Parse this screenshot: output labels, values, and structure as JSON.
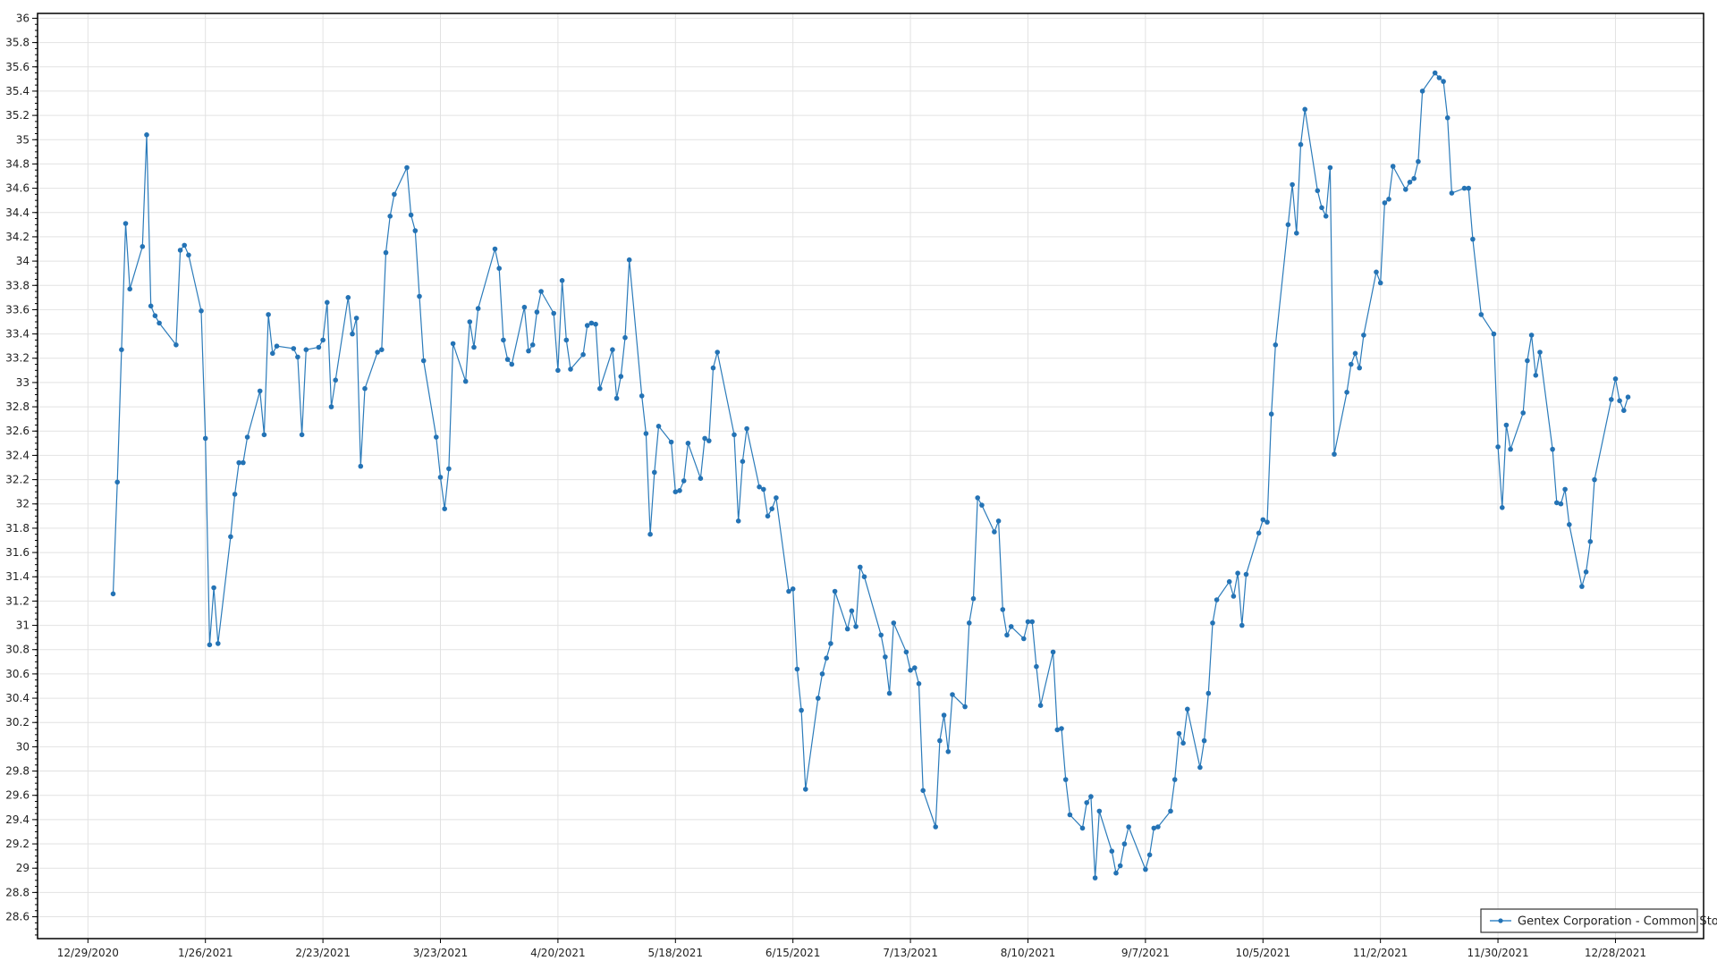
{
  "chart_data": {
    "type": "line",
    "title": "",
    "xlabel": "",
    "ylabel": "",
    "ylim": [
      28.42,
      36.04
    ],
    "xlim": [
      "12/17/2020",
      "1/18/2022"
    ],
    "y_ticks": [
      "28.6",
      "28.8",
      "29",
      "29.2",
      "29.4",
      "29.6",
      "29.8",
      "30",
      "30.2",
      "30.4",
      "30.6",
      "30.8",
      "31",
      "31.2",
      "31.4",
      "31.6",
      "31.8",
      "32",
      "32.2",
      "32.4",
      "32.6",
      "32.8",
      "33",
      "33.2",
      "33.4",
      "33.6",
      "33.8",
      "34",
      "34.2",
      "34.4",
      "34.6",
      "34.8",
      "35",
      "35.2",
      "35.4",
      "35.6",
      "35.8",
      "36"
    ],
    "x_ticks": [
      "12/29/2020",
      "1/26/2021",
      "2/23/2021",
      "3/23/2021",
      "4/20/2021",
      "5/18/2021",
      "6/15/2021",
      "7/13/2021",
      "8/10/2021",
      "9/7/2021",
      "10/5/2021",
      "11/2/2021",
      "11/30/2021",
      "12/28/2021"
    ],
    "grid": true,
    "legend_position": "bottom-right",
    "colors": {
      "series": "#2473b5",
      "grid": "#e2e2e2"
    },
    "series": [
      {
        "name": "Gentex Corporation - Common Stock",
        "marker": "circle",
        "x": [
          "1/4/2021",
          "1/5/2021",
          "1/6/2021",
          "1/7/2021",
          "1/8/2021",
          "1/11/2021",
          "1/12/2021",
          "1/13/2021",
          "1/14/2021",
          "1/15/2021",
          "1/19/2021",
          "1/20/2021",
          "1/21/2021",
          "1/22/2021",
          "1/25/2021",
          "1/26/2021",
          "1/27/2021",
          "1/28/2021",
          "1/29/2021",
          "2/1/2021",
          "2/2/2021",
          "2/3/2021",
          "2/4/2021",
          "2/5/2021",
          "2/8/2021",
          "2/9/2021",
          "2/10/2021",
          "2/11/2021",
          "2/12/2021",
          "2/16/2021",
          "2/17/2021",
          "2/18/2021",
          "2/19/2021",
          "2/22/2021",
          "2/23/2021",
          "2/24/2021",
          "2/25/2021",
          "2/26/2021",
          "3/1/2021",
          "3/2/2021",
          "3/3/2021",
          "3/4/2021",
          "3/5/2021",
          "3/8/2021",
          "3/9/2021",
          "3/10/2021",
          "3/11/2021",
          "3/12/2021",
          "3/15/2021",
          "3/16/2021",
          "3/17/2021",
          "3/18/2021",
          "3/19/2021",
          "3/22/2021",
          "3/23/2021",
          "3/24/2021",
          "3/25/2021",
          "3/26/2021",
          "3/29/2021",
          "3/30/2021",
          "3/31/2021",
          "4/1/2021",
          "4/5/2021",
          "4/6/2021",
          "4/7/2021",
          "4/8/2021",
          "4/9/2021",
          "4/12/2021",
          "4/13/2021",
          "4/14/2021",
          "4/15/2021",
          "4/16/2021",
          "4/19/2021",
          "4/20/2021",
          "4/21/2021",
          "4/22/2021",
          "4/23/2021",
          "4/26/2021",
          "4/27/2021",
          "4/28/2021",
          "4/29/2021",
          "4/30/2021",
          "5/3/2021",
          "5/4/2021",
          "5/5/2021",
          "5/6/2021",
          "5/7/2021",
          "5/10/2021",
          "5/11/2021",
          "5/12/2021",
          "5/13/2021",
          "5/14/2021",
          "5/17/2021",
          "5/18/2021",
          "5/19/2021",
          "5/20/2021",
          "5/21/2021",
          "5/24/2021",
          "5/25/2021",
          "5/26/2021",
          "5/27/2021",
          "5/28/2021",
          "6/1/2021",
          "6/2/2021",
          "6/3/2021",
          "6/4/2021",
          "6/7/2021",
          "6/8/2021",
          "6/9/2021",
          "6/10/2021",
          "6/11/2021",
          "6/14/2021",
          "6/15/2021",
          "6/16/2021",
          "6/17/2021",
          "6/18/2021",
          "6/21/2021",
          "6/22/2021",
          "6/23/2021",
          "6/24/2021",
          "6/25/2021",
          "6/28/2021",
          "6/29/2021",
          "6/30/2021",
          "7/1/2021",
          "7/2/2021",
          "7/6/2021",
          "7/7/2021",
          "7/8/2021",
          "7/9/2021",
          "7/12/2021",
          "7/13/2021",
          "7/14/2021",
          "7/15/2021",
          "7/16/2021",
          "7/19/2021",
          "7/20/2021",
          "7/21/2021",
          "7/22/2021",
          "7/23/2021",
          "7/26/2021",
          "7/27/2021",
          "7/28/2021",
          "7/29/2021",
          "7/30/2021",
          "8/2/2021",
          "8/3/2021",
          "8/4/2021",
          "8/5/2021",
          "8/6/2021",
          "8/9/2021",
          "8/10/2021",
          "8/11/2021",
          "8/12/2021",
          "8/13/2021",
          "8/16/2021",
          "8/17/2021",
          "8/18/2021",
          "8/19/2021",
          "8/20/2021",
          "8/23/2021",
          "8/24/2021",
          "8/25/2021",
          "8/26/2021",
          "8/27/2021",
          "8/30/2021",
          "8/31/2021",
          "9/1/2021",
          "9/2/2021",
          "9/3/2021",
          "9/7/2021",
          "9/8/2021",
          "9/9/2021",
          "9/10/2021",
          "9/13/2021",
          "9/14/2021",
          "9/15/2021",
          "9/16/2021",
          "9/17/2021",
          "9/20/2021",
          "9/21/2021",
          "9/22/2021",
          "9/23/2021",
          "9/24/2021",
          "9/27/2021",
          "9/28/2021",
          "9/29/2021",
          "9/30/2021",
          "10/1/2021",
          "10/4/2021",
          "10/5/2021",
          "10/6/2021",
          "10/7/2021",
          "10/8/2021",
          "10/11/2021",
          "10/12/2021",
          "10/13/2021",
          "10/14/2021",
          "10/15/2021",
          "10/18/2021",
          "10/19/2021",
          "10/20/2021",
          "10/21/2021",
          "10/22/2021",
          "10/25/2021",
          "10/26/2021",
          "10/27/2021",
          "10/28/2021",
          "10/29/2021",
          "11/1/2021",
          "11/2/2021",
          "11/3/2021",
          "11/4/2021",
          "11/5/2021",
          "11/8/2021",
          "11/9/2021",
          "11/10/2021",
          "11/11/2021",
          "11/12/2021",
          "11/15/2021",
          "11/16/2021",
          "11/17/2021",
          "11/18/2021",
          "11/19/2021",
          "11/22/2021",
          "11/23/2021",
          "11/24/2021",
          "11/26/2021",
          "11/29/2021",
          "11/30/2021",
          "12/1/2021",
          "12/2/2021",
          "12/3/2021",
          "12/6/2021",
          "12/7/2021",
          "12/8/2021",
          "12/9/2021",
          "12/10/2021",
          "12/13/2021",
          "12/14/2021",
          "12/15/2021",
          "12/16/2021",
          "12/17/2021",
          "12/20/2021",
          "12/21/2021",
          "12/22/2021",
          "12/23/2021",
          "12/27/2021",
          "12/28/2021",
          "12/29/2021",
          "12/30/2021",
          "12/31/2021"
        ],
        "values": [
          31.26,
          32.18,
          33.27,
          34.31,
          33.77,
          34.12,
          35.04,
          33.63,
          33.55,
          33.49,
          33.31,
          34.09,
          34.13,
          34.05,
          33.59,
          32.54,
          30.84,
          31.31,
          30.85,
          31.73,
          32.08,
          32.34,
          32.34,
          32.55,
          32.93,
          32.57,
          33.56,
          33.24,
          33.3,
          33.28,
          33.21,
          32.57,
          33.27,
          33.29,
          33.35,
          33.66,
          32.8,
          33.02,
          33.7,
          33.4,
          33.53,
          32.31,
          32.95,
          33.25,
          33.27,
          34.07,
          34.37,
          34.55,
          34.77,
          34.38,
          34.25,
          33.71,
          33.18,
          32.55,
          32.22,
          31.96,
          32.29,
          33.32,
          33.01,
          33.5,
          33.29,
          33.61,
          34.1,
          33.94,
          33.35,
          33.19,
          33.15,
          33.62,
          33.26,
          33.31,
          33.58,
          33.75,
          33.57,
          33.1,
          33.84,
          33.35,
          33.11,
          33.23,
          33.47,
          33.49,
          33.48,
          32.95,
          33.27,
          32.87,
          33.05,
          33.37,
          34.01,
          32.89,
          32.58,
          31.75,
          32.26,
          32.64,
          32.51,
          32.1,
          32.11,
          32.19,
          32.5,
          32.21,
          32.54,
          32.52,
          33.12,
          33.25,
          32.57,
          31.86,
          32.35,
          32.62,
          32.14,
          32.12,
          31.9,
          31.96,
          32.05,
          31.28,
          31.3,
          30.64,
          30.3,
          29.65,
          30.4,
          30.6,
          30.73,
          30.85,
          31.28,
          30.97,
          31.12,
          30.99,
          31.48,
          31.4,
          30.92,
          30.74,
          30.44,
          31.02,
          30.78,
          30.63,
          30.65,
          30.52,
          29.64,
          29.34,
          30.05,
          30.26,
          29.96,
          30.43,
          30.33,
          31.02,
          31.22,
          32.05,
          31.99,
          31.77,
          31.86,
          31.13,
          30.92,
          30.99,
          30.89,
          31.03,
          31.03,
          30.66,
          30.34,
          30.78,
          30.14,
          30.15,
          29.73,
          29.44,
          29.33,
          29.54,
          29.59,
          28.92,
          29.47,
          29.14,
          28.96,
          29.02,
          29.2,
          29.34,
          28.99,
          29.11,
          29.33,
          29.34,
          29.47,
          29.73,
          30.11,
          30.03,
          30.31,
          29.83,
          30.05,
          30.44,
          31.02,
          31.21,
          31.36,
          31.24,
          31.43,
          31.0,
          31.42,
          31.76,
          31.87,
          31.85,
          32.74,
          33.31,
          34.3,
          34.63,
          34.23,
          34.96,
          35.25,
          34.58,
          34.44,
          34.37,
          34.77,
          32.41,
          32.92,
          33.15,
          33.24,
          33.12,
          33.39,
          33.91,
          33.82,
          34.48,
          34.51,
          34.78,
          34.59,
          34.65,
          34.68,
          34.82,
          35.4,
          35.55,
          35.51,
          35.48,
          35.18,
          34.56,
          34.6,
          34.6,
          34.18,
          33.56,
          33.4,
          32.47,
          31.97,
          32.65,
          32.45,
          32.75,
          33.18,
          33.39,
          33.06,
          33.25,
          32.45,
          32.01,
          32.0,
          32.12,
          31.83,
          31.32,
          31.44,
          31.69,
          32.2,
          32.86,
          33.03,
          32.85,
          32.77,
          32.88
        ]
      }
    ]
  }
}
